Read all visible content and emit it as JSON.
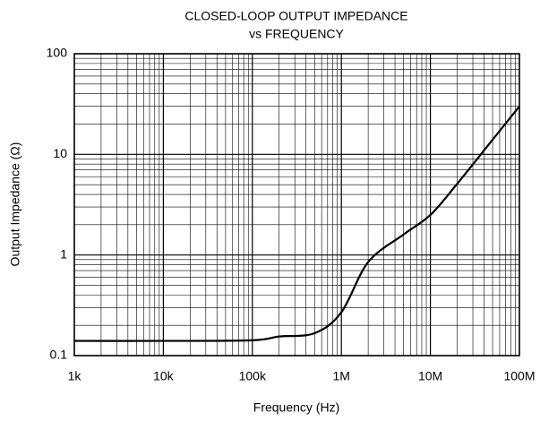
{
  "chart_data": {
    "type": "line",
    "title": "CLOSED-LOOP OUTPUT IMPEDANCE",
    "subtitle": "vs FREQUENCY",
    "x_label": "Frequency (Hz)",
    "y_label": "Output Impedance (Ω)",
    "x_scale": "log",
    "y_scale": "log",
    "grid": true,
    "minor_grid": true,
    "x": [
      1000,
      10000,
      100000,
      200000,
      500000,
      1000000,
      2000000,
      5000000,
      10000000,
      20000000,
      50000000,
      100000000
    ],
    "series": [
      {
        "name": "Output Impedance",
        "color": "#000000",
        "values": [
          0.14,
          0.14,
          0.142,
          0.155,
          0.167,
          0.27,
          0.85,
          1.6,
          2.5,
          5.1,
          14,
          30
        ]
      }
    ],
    "xlim": [
      1000,
      100000000
    ],
    "ylim": [
      0.1,
      100
    ],
    "xticks": [
      {
        "value": 1000,
        "label": "1k"
      },
      {
        "value": 10000,
        "label": "10k"
      },
      {
        "value": 100000,
        "label": "100k"
      },
      {
        "value": 1000000,
        "label": "1M"
      },
      {
        "value": 10000000,
        "label": "10M"
      },
      {
        "value": 100000000,
        "label": "100M"
      }
    ],
    "yticks": [
      0.1,
      1,
      10,
      100
    ]
  }
}
